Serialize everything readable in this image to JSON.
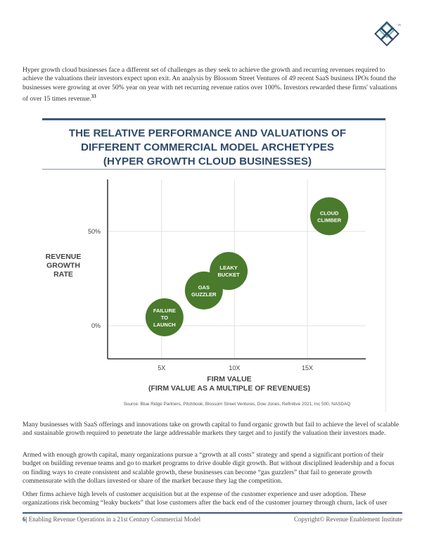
{
  "logo": {
    "icon": "diamond-lattice-logo",
    "mark": "TM",
    "colors": [
      "#2e4a6a",
      "#5fb3b3"
    ]
  },
  "intro": {
    "text": "Hyper growth cloud businesses face a different set of challenges as they seek to achieve the growth and recurring revenues required to achieve the valuations their investors expect upon exit. An analysis by Blossom Street Ventures of 49 recent SaaS business IPOs found the businesses were growing at over 50% year on year with net recurring revenue ratios over 100%. Investors rewarded these firms' valuations of over 15 times revenue.",
    "footnote": "33"
  },
  "chart_data": {
    "type": "scatter",
    "title": "THE RELATIVE PERFORMANCE AND VALUATIONS OF DIFFERENT COMMERCIAL MODEL ARCHETYPES (HYPER GROWTH CLOUD BUSINESSES)",
    "title_lines": [
      "THE RELATIVE PERFORMANCE AND VALUATIONS OF",
      "DIFFERENT COMMERCIAL MODEL ARCHETYPES",
      "(HYPER GROWTH CLOUD BUSINESSES)"
    ],
    "xlabel": "FIRM VALUE",
    "xlabel_sub": "(FIRM VALUE AS A MULTIPLE OF REVENUES)",
    "ylabel_lines": [
      "REVENUE",
      "GROWTH",
      "RATE"
    ],
    "xticks": [
      {
        "value": 5,
        "label": "5X"
      },
      {
        "value": 10,
        "label": "10X"
      },
      {
        "value": 15,
        "label": "15X"
      }
    ],
    "yticks": [
      {
        "value": 0,
        "label": "0%"
      },
      {
        "value": 50,
        "label": "50%"
      }
    ],
    "xlim": [
      1.3,
      19
    ],
    "ylim": [
      -17.5,
      77.5
    ],
    "grid": true,
    "bubble_color": "#4a7a2c",
    "points": [
      {
        "label_lines": [
          "FAILURE",
          "TO",
          "LAUNCH"
        ],
        "x": 5.2,
        "y": 4.5
      },
      {
        "label_lines": [
          "GAS",
          "GUZZLER"
        ],
        "x": 7.9,
        "y": 18.7
      },
      {
        "label_lines": [
          "LEAKY",
          "BUCKET"
        ],
        "x": 9.6,
        "y": 29
      },
      {
        "label_lines": [
          "CLOUD",
          "CLIMBER"
        ],
        "x": 16.5,
        "y": 58
      }
    ],
    "source": "Source: Blue Ridge Partners, Pitchbook, Blossom Street Ventures, Dow Jones, Refinitive 2021, Inc 500, NASDAQ"
  },
  "body": [
    "Many businesses with SaaS offerings and innovations take on growth capital to fund organic growth but fail to achieve the level of scalable and sustainable growth required to penetrate the large addressable markets they target and to justify the valuation their investors made.",
    "Armed with enough growth capital, many organizations pursue a “growth at all costs” strategy and spend a significant portion of their budget on building revenue teams and go to market programs to drive double digit growth. But without disciplined leadership and a focus on finding ways to create consistent and scalable growth, these businesses can become “gas guzzlers” that fail to generate growth commensurate with the dollars invested or share of the market because they lag the competition.",
    "Other firms achieve high levels of customer acquisition but at the expense of the customer experience and user adoption. These organizations risk becoming “leaky buckets” that lose customers after the back end of the customer journey through churn, lack of user"
  ],
  "footer": {
    "page": "6",
    "separator": "|",
    "title": "Enabling Revenue Operations in a 21st Century Commercial Model",
    "copyright": "Copyright© Revenue Enablement Institute"
  }
}
